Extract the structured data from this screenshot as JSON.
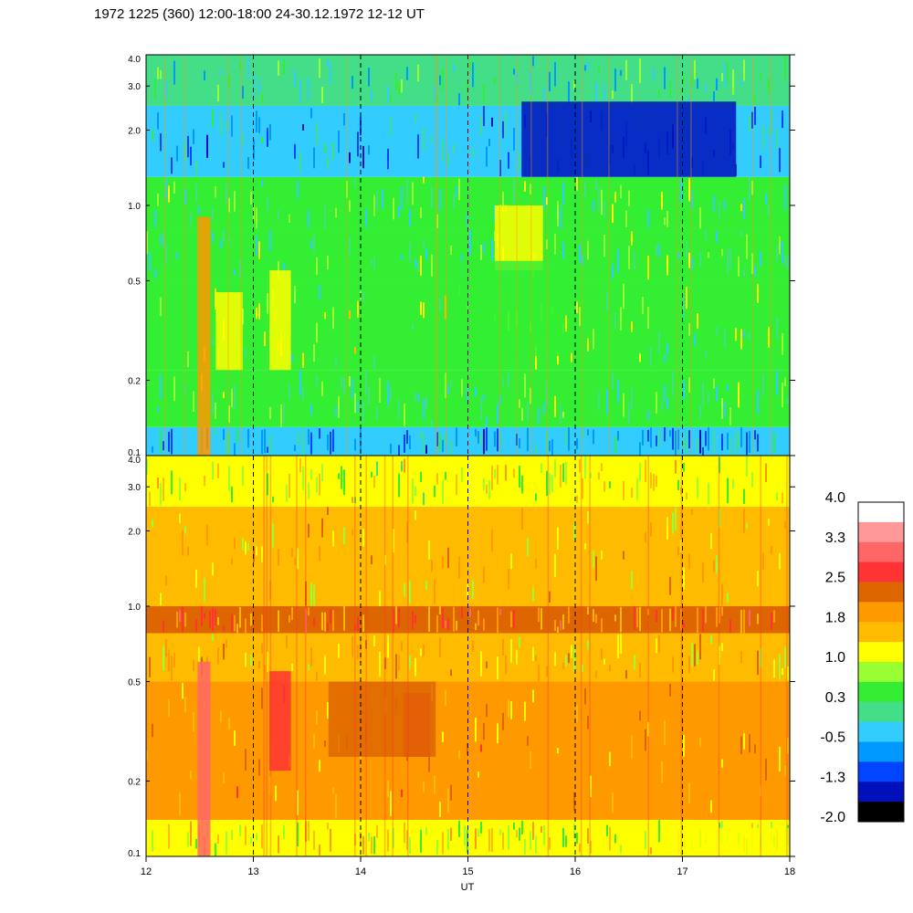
{
  "title": "1972 1225 (360) 12:00-18:00 24-30.12.1972  12-12 UT",
  "chart_data": [
    {
      "type": "heatmap",
      "panel": "top",
      "x": [
        12,
        13,
        14,
        15,
        16,
        17,
        18
      ],
      "xlim": [
        12,
        18
      ],
      "ylim": [
        0.1,
        4.0
      ],
      "yscale": "log",
      "ytick_labels": [
        "4.0",
        "3.0",
        "2.0",
        "1.0",
        "0.5",
        "0.2",
        "0.1"
      ],
      "ytick_values": [
        4.0,
        3.0,
        2.0,
        1.0,
        0.5,
        0.2,
        0.1
      ],
      "dashed_gridlines_at_x": [
        13,
        14,
        15,
        16,
        17
      ],
      "bands": [
        {
          "y_from": 0.1,
          "y_to": 0.13,
          "level": -0.5
        },
        {
          "y_from": 0.13,
          "y_to": 0.22,
          "level": 0.3
        },
        {
          "y_from": 0.22,
          "y_to": 0.5,
          "level": 0.6
        },
        {
          "y_from": 0.5,
          "y_to": 0.8,
          "level": 0.3
        },
        {
          "y_from": 0.8,
          "y_to": 1.3,
          "level": 0.3
        },
        {
          "y_from": 1.3,
          "y_to": 2.5,
          "level": -0.5
        },
        {
          "y_from": 2.5,
          "y_to": 4.0,
          "level": 0.0
        }
      ],
      "blobs": [
        {
          "x_from": 12.48,
          "x_to": 12.6,
          "y_from": 0.1,
          "y_to": 0.9,
          "level": 1.8
        },
        {
          "x_from": 13.15,
          "x_to": 13.35,
          "y_from": 0.22,
          "y_to": 0.55,
          "level": 1.0
        },
        {
          "x_from": 12.65,
          "x_to": 12.9,
          "y_from": 0.22,
          "y_to": 0.45,
          "level": 1.0
        },
        {
          "x_from": 15.25,
          "x_to": 15.7,
          "y_from": 0.55,
          "y_to": 1.0,
          "level": 1.0
        },
        {
          "x_from": 14.9,
          "x_to": 15.9,
          "y_from": 0.25,
          "y_to": 0.6,
          "level": 0.6
        },
        {
          "x_from": 15.5,
          "x_to": 17.5,
          "y_from": 1.3,
          "y_to": 2.6,
          "level": -1.3
        }
      ]
    },
    {
      "type": "heatmap",
      "panel": "bottom",
      "x": [
        12,
        13,
        14,
        15,
        16,
        17,
        18
      ],
      "xlim": [
        12,
        18
      ],
      "ylim": [
        0.1,
        4.0
      ],
      "yscale": "log",
      "ytick_labels": [
        "4.0",
        "3.0",
        "2.0",
        "1.0",
        "0.5",
        "0.2",
        "0.1"
      ],
      "ytick_values": [
        4.0,
        3.0,
        2.0,
        1.0,
        0.5,
        0.2,
        0.1
      ],
      "dashed_gridlines_at_x": [
        13,
        14,
        15,
        16,
        17
      ],
      "bands": [
        {
          "y_from": 0.1,
          "y_to": 0.14,
          "level": 1.2
        },
        {
          "y_from": 0.14,
          "y_to": 0.5,
          "level": 1.8
        },
        {
          "y_from": 0.5,
          "y_to": 0.78,
          "level": 1.5
        },
        {
          "y_from": 0.78,
          "y_to": 1.0,
          "level": 2.2
        },
        {
          "y_from": 1.0,
          "y_to": 2.5,
          "level": 1.5
        },
        {
          "y_from": 2.5,
          "y_to": 4.0,
          "level": 1.0
        }
      ],
      "blobs": [
        {
          "x_from": 12.48,
          "x_to": 12.6,
          "y_from": 0.1,
          "y_to": 0.6,
          "level": 2.9
        },
        {
          "x_from": 13.15,
          "x_to": 13.35,
          "y_from": 0.22,
          "y_to": 0.55,
          "level": 2.5
        },
        {
          "x_from": 14.4,
          "x_to": 14.65,
          "y_from": 0.25,
          "y_to": 0.45,
          "level": 2.5
        },
        {
          "x_from": 13.7,
          "x_to": 14.7,
          "y_from": 0.25,
          "y_to": 0.5,
          "level": 2.2
        },
        {
          "x_from": 16.8,
          "x_to": 18.0,
          "y_from": 0.1,
          "y_to": 0.13,
          "level": 1.0
        }
      ]
    }
  ],
  "xaxis": {
    "label": "UT",
    "tick_labels": [
      "12",
      "13",
      "14",
      "15",
      "16",
      "17",
      "18"
    ],
    "tick_values": [
      12,
      13,
      14,
      15,
      16,
      17,
      18
    ]
  },
  "colorbar": {
    "labels": [
      "4.0",
      "3.3",
      "2.5",
      "1.8",
      "1.0",
      "0.3",
      "-0.5",
      "-1.3",
      "-2.0"
    ],
    "colors_top_to_bottom": [
      "#ffffff",
      "#ff9999",
      "#ff6666",
      "#ff3333",
      "#dd6600",
      "#ff9900",
      "#ffbb00",
      "#ffff00",
      "#99ff33",
      "#33ee33",
      "#44dd88",
      "#33ccff",
      "#0099ff",
      "#0044ff",
      "#0011bb",
      "#000000"
    ],
    "min": -2.0,
    "max": 4.0
  }
}
